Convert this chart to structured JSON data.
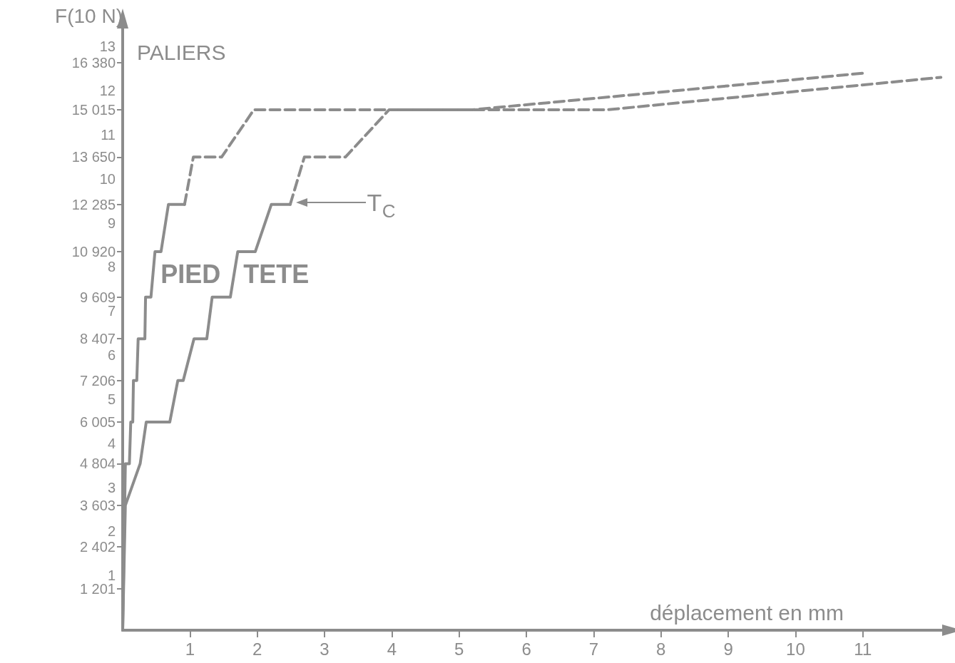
{
  "chart_data": {
    "type": "line",
    "xlabel": "déplacement en mm",
    "ylabel": "F(10 N)",
    "y2label": "PALIERS",
    "xlim": [
      0,
      12.2
    ],
    "xticks": [
      1,
      2,
      3,
      4,
      5,
      6,
      7,
      8,
      9,
      10,
      11
    ],
    "ylim": [
      0,
      17400
    ],
    "y2lim": [
      -0.24,
      13.44
    ],
    "y2ticks": [
      1,
      2,
      3,
      4,
      5,
      6,
      7,
      8,
      9,
      10,
      11,
      12,
      13
    ],
    "yticks": [
      {
        "value": 1201,
        "label": "1 201"
      },
      {
        "value": 2402,
        "label": "2 402"
      },
      {
        "value": 3603,
        "label": "3 603"
      },
      {
        "value": 4804,
        "label": "4 804"
      },
      {
        "value": 6005,
        "label": "6 005"
      },
      {
        "value": 7206,
        "label": "7 206"
      },
      {
        "value": 8407,
        "label": "8 407"
      },
      {
        "value": 9609,
        "label": "9 609"
      },
      {
        "value": 10920,
        "label": "10 920"
      },
      {
        "value": 12285,
        "label": "12 285"
      },
      {
        "value": 13650,
        "label": "13 650"
      },
      {
        "value": 15015,
        "label": "15 015"
      },
      {
        "value": 16380,
        "label": "16 380"
      }
    ],
    "series": [
      {
        "name": "PIED",
        "color": "#8c8c8c",
        "line_style": "solid",
        "x": [
          0,
          0.04,
          0.1,
          0.12,
          0.15,
          0.16,
          0.21,
          0.23,
          0.33,
          0.34,
          0.42,
          0.48,
          0.57,
          0.68,
          0.92
        ],
        "values": [
          0,
          4804,
          4804,
          6005,
          6005,
          7206,
          7206,
          8407,
          8407,
          9609,
          9609,
          10920,
          10920,
          12285,
          12285
        ]
      },
      {
        "color": "#8c8c8c",
        "line_style": "dashed",
        "x": [
          0.92,
          1.05,
          1.47,
          1.95,
          5.2,
          11.06
        ],
        "values": [
          12285,
          13650,
          13650,
          15015,
          15015,
          16080
        ]
      },
      {
        "name": "TETE",
        "color": "#8c8c8c",
        "line_style": "solid",
        "x": [
          0,
          0.04,
          0.26,
          0.35,
          0.7,
          0.82,
          0.9,
          1.06,
          1.25,
          1.33,
          1.6,
          1.71,
          1.97,
          2.21,
          2.49
        ],
        "values": [
          0,
          3603,
          4804,
          6005,
          6005,
          7206,
          7206,
          8407,
          8407,
          9609,
          9609,
          10920,
          10920,
          12285,
          12285
        ]
      },
      {
        "color": "#8c8c8c",
        "line_style": "dashed",
        "x": [
          2.49,
          2.7,
          3.31,
          3.96,
          7.2,
          12.16
        ],
        "values": [
          12285,
          13650,
          13650,
          15015,
          15015,
          15950
        ]
      }
    ],
    "annotations": [
      {
        "text": "T$_{C}$",
        "x": 2.55,
        "y": 12285
      }
    ]
  }
}
